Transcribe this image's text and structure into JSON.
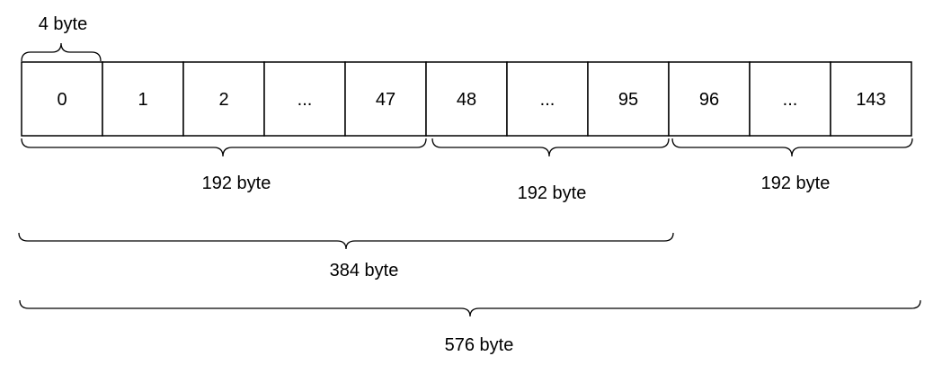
{
  "cells": [
    "0",
    "1",
    "2",
    "...",
    "47",
    "48",
    "...",
    "95",
    "96",
    "...",
    "143"
  ],
  "braces": {
    "cell_size": "4 byte",
    "block_1": "192 byte",
    "block_2": "192 byte",
    "block_3": "192 byte",
    "combined_two": "384 byte",
    "total": "576 byte"
  }
}
